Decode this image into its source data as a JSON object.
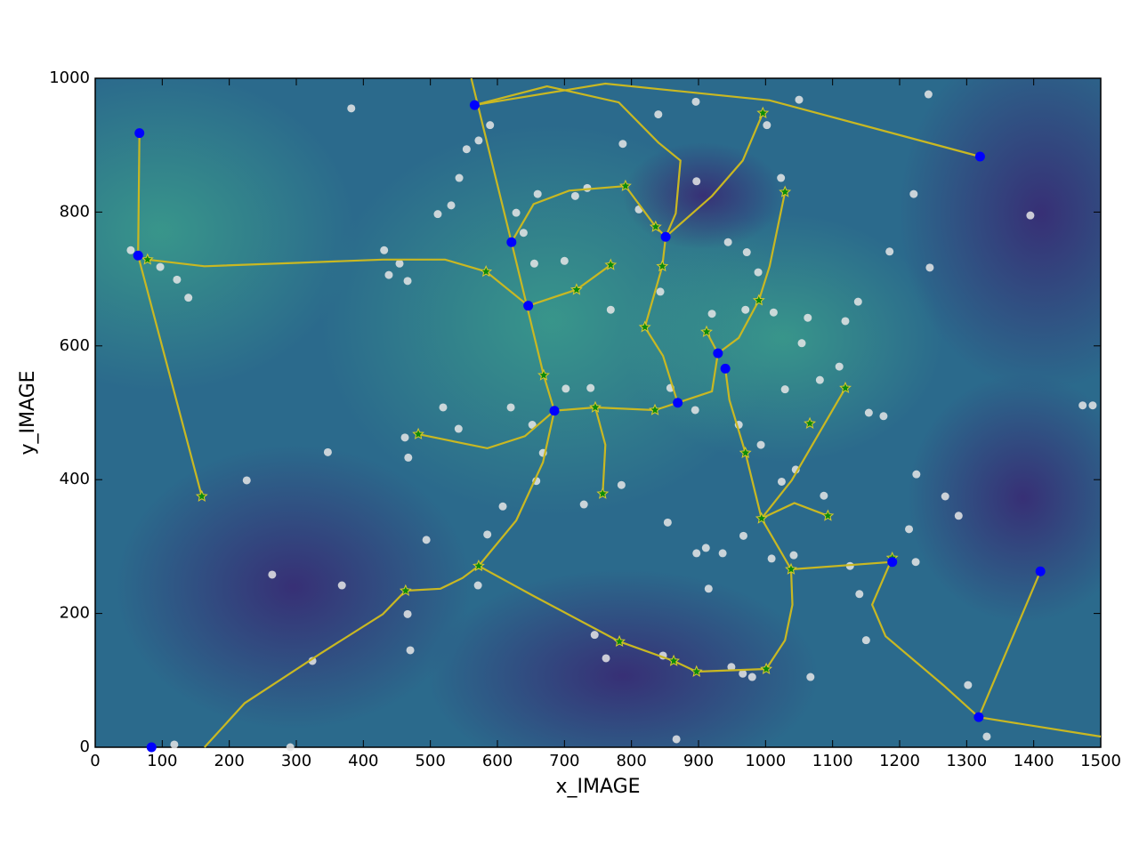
{
  "chart_data": {
    "type": "scatter",
    "xlabel": "x_IMAGE",
    "ylabel": "y_IMAGE",
    "xlim": [
      0,
      1500
    ],
    "ylim": [
      0,
      1000
    ],
    "xticks": [
      0,
      100,
      200,
      300,
      400,
      500,
      600,
      700,
      800,
      900,
      1000,
      1100,
      1200,
      1300,
      1400,
      1500
    ],
    "yticks": [
      0,
      200,
      400,
      600,
      800,
      1000
    ],
    "series": [
      {
        "kind": "points",
        "marker": "circle",
        "color": "#e6e6e6",
        "x": [
          382,
          1243,
          1050,
          896,
          840,
          589,
          572,
          554,
          787,
          1002,
          1023,
          897,
          1221,
          1395,
          1245,
          1185,
          53,
          97,
          122,
          139,
          431,
          454,
          438,
          466,
          511,
          543,
          531,
          655,
          700,
          769,
          843,
          920,
          970,
          1012,
          1063,
          1138,
          1119,
          1054,
          1110,
          1081,
          1154,
          1176,
          1473,
          1488,
          1225,
          1268,
          1288,
          1214,
          1224,
          1140,
          1150,
          1067,
          1302,
          1330,
          867,
          118,
          291,
          264,
          226,
          347,
          324,
          368,
          470,
          466,
          494,
          571,
          585,
          608,
          658,
          729,
          785,
          854,
          897,
          915,
          911,
          936,
          967,
          1009,
          1042,
          1126,
          745,
          762,
          847,
          949,
          966,
          980,
          1024,
          1087,
          519,
          542,
          462,
          467,
          620,
          652,
          668,
          702,
          739,
          858,
          895,
          960,
          1029,
          993,
          1045,
          628,
          639,
          660,
          716,
          734,
          811,
          944,
          972,
          989
        ],
        "y": [
          955,
          976,
          968,
          965,
          946,
          930,
          907,
          894,
          902,
          930,
          851,
          846,
          827,
          795,
          717,
          741,
          743,
          718,
          699,
          672,
          743,
          723,
          706,
          697,
          797,
          851,
          810,
          723,
          727,
          654,
          681,
          648,
          654,
          650,
          642,
          666,
          637,
          604,
          569,
          549,
          500,
          495,
          511,
          511,
          408,
          375,
          346,
          326,
          277,
          229,
          160,
          105,
          93,
          16,
          12,
          4,
          0,
          258,
          399,
          441,
          129,
          242,
          145,
          199,
          310,
          242,
          318,
          360,
          398,
          363,
          392,
          336,
          290,
          237,
          298,
          290,
          316,
          282,
          287,
          271,
          168,
          133,
          137,
          120,
          110,
          105,
          397,
          376,
          508,
          476,
          463,
          433,
          508,
          482,
          440,
          536,
          537,
          537,
          504,
          482,
          535,
          452,
          415,
          799,
          769,
          827,
          824,
          836,
          804,
          755,
          740,
          710
        ]
      },
      {
        "kind": "line",
        "color": "#c9b822",
        "x": [
          66,
          64,
          159
        ],
        "y": [
          918,
          735,
          375
        ]
      },
      {
        "kind": "line",
        "color": "#c9b822",
        "x": [
          78,
          163,
          296,
          429,
          522,
          583,
          646
        ],
        "y": [
          729,
          719,
          724,
          729,
          729,
          711,
          660
        ]
      },
      {
        "kind": "line",
        "color": "#c9b822",
        "x": [
          561,
          621,
          669,
          685
        ],
        "y": [
          1000,
          755,
          556,
          503
        ]
      },
      {
        "kind": "line",
        "color": "#c9b822",
        "x": [
          566,
          674,
          781,
          840,
          873,
          866,
          851
        ],
        "y": [
          960,
          988,
          964,
          904,
          877,
          798,
          763
        ]
      },
      {
        "kind": "line",
        "color": "#c9b822",
        "x": [
          566,
          761,
          1006,
          1320
        ],
        "y": [
          960,
          992,
          967,
          883
        ]
      },
      {
        "kind": "line",
        "color": "#c9b822",
        "x": [
          851,
          920,
          966,
          996
        ],
        "y": [
          763,
          824,
          877,
          948
        ]
      },
      {
        "kind": "line",
        "color": "#c9b822",
        "x": [
          621,
          654,
          707,
          791,
          836,
          851
        ],
        "y": [
          755,
          812,
          832,
          839,
          778,
          763
        ]
      },
      {
        "kind": "line",
        "color": "#c9b822",
        "x": [
          646,
          718,
          769
        ],
        "y": [
          660,
          684,
          721
        ]
      },
      {
        "kind": "line",
        "color": "#c9b822",
        "x": [
          851,
          846,
          820,
          847,
          869
        ],
        "y": [
          763,
          719,
          628,
          585,
          515
        ]
      },
      {
        "kind": "line",
        "color": "#c9b822",
        "x": [
          482,
          585,
          641,
          685,
          746,
          835,
          869,
          920,
          929
        ],
        "y": [
          468,
          447,
          465,
          503,
          508,
          504,
          515,
          532,
          589
        ]
      },
      {
        "kind": "line",
        "color": "#c9b822",
        "x": [
          685,
          668,
          628,
          572,
          548,
          515,
          463,
          429,
          336,
          223,
          163
        ],
        "y": [
          503,
          426,
          339,
          271,
          253,
          237,
          234,
          199,
          140,
          66,
          0
        ]
      },
      {
        "kind": "line",
        "color": "#c9b822",
        "x": [
          572,
          654,
          782,
          863,
          897,
          1001,
          1029,
          1040,
          1038
        ],
        "y": [
          271,
          226,
          158,
          129,
          113,
          117,
          160,
          213,
          266
        ]
      },
      {
        "kind": "line",
        "color": "#c9b822",
        "x": [
          940,
          946,
          970,
          994,
          1038,
          1189
        ],
        "y": [
          566,
          519,
          440,
          342,
          266,
          277
        ]
      },
      {
        "kind": "line",
        "color": "#c9b822",
        "x": [
          994,
          1039,
          1119
        ],
        "y": [
          342,
          399,
          537
        ]
      },
      {
        "kind": "line",
        "color": "#c9b822",
        "x": [
          1189,
          1159,
          1179,
          1265,
          1318,
          1410
        ],
        "y": [
          283,
          213,
          166,
          93,
          45,
          263
        ]
      },
      {
        "kind": "line",
        "color": "#c9b822",
        "x": [
          1318,
          1500
        ],
        "y": [
          45,
          16
        ]
      },
      {
        "kind": "line",
        "color": "#c9b822",
        "x": [
          929,
          960,
          990,
          1006,
          1029
        ],
        "y": [
          589,
          612,
          668,
          719,
          830
        ]
      },
      {
        "kind": "line",
        "color": "#c9b822",
        "x": [
          929,
          912
        ],
        "y": [
          589,
          621
        ]
      },
      {
        "kind": "line",
        "color": "#c9b822",
        "x": [
          746,
          761,
          757
        ],
        "y": [
          508,
          452,
          379
        ]
      },
      {
        "kind": "line",
        "color": "#c9b822",
        "x": [
          994,
          1043,
          1093
        ],
        "y": [
          342,
          365,
          346
        ]
      },
      {
        "kind": "points",
        "marker": "star",
        "color": "#0a8a0a",
        "x": [
          78,
          159,
          482,
          583,
          669,
          718,
          769,
          791,
          836,
          846,
          820,
          746,
          835,
          757,
          572,
          463,
          782,
          863,
          897,
          1001,
          996,
          1029,
          990,
          912,
          970,
          994,
          1038,
          1066,
          1119,
          1093,
          1189
        ],
        "y": [
          729,
          375,
          468,
          711,
          556,
          684,
          721,
          839,
          778,
          719,
          628,
          508,
          504,
          379,
          271,
          234,
          158,
          129,
          113,
          117,
          948,
          830,
          668,
          621,
          440,
          342,
          266,
          484,
          537,
          346,
          283
        ]
      },
      {
        "kind": "points",
        "marker": "circle",
        "color": "#0000ff",
        "x": [
          66,
          64,
          566,
          621,
          646,
          685,
          851,
          869,
          929,
          940,
          1320,
          1189,
          1410,
          1318,
          84
        ],
        "y": [
          918,
          735,
          960,
          755,
          660,
          503,
          763,
          515,
          589,
          566,
          883,
          277,
          263,
          45,
          0
        ]
      }
    ]
  }
}
